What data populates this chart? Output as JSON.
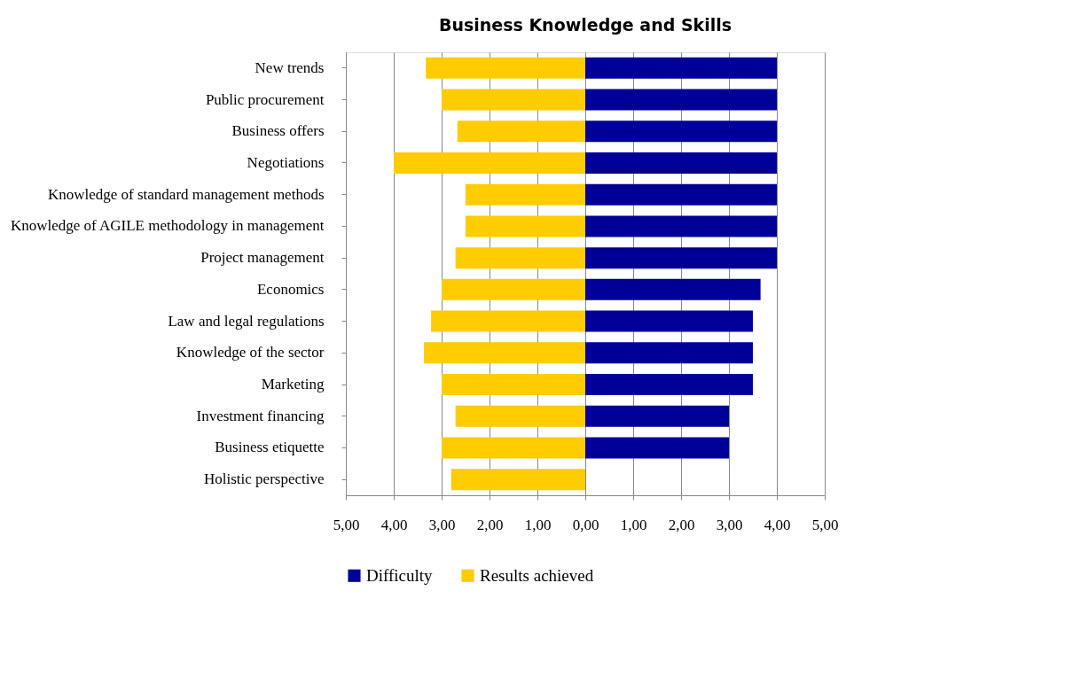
{
  "chart_data": {
    "type": "bar",
    "orientation": "horizontal",
    "title": "Business Knowledge and Skills",
    "categories": [
      "New trends",
      "Public procurement",
      "Business offers",
      "Negotiations",
      "Knowledge of standard management methods",
      "Knowledge of AGILE methodology in management",
      "Project management",
      "Economics",
      "Law and legal regulations",
      "Knowledge of the sector",
      "Marketing",
      "Investment financing",
      "Business etiquette",
      "Holistic perspective"
    ],
    "series": [
      {
        "name": "Difficulty",
        "color": "#000099",
        "values": [
          4.0,
          4.0,
          4.0,
          4.0,
          4.0,
          4.0,
          4.0,
          3.66,
          3.5,
          3.5,
          3.5,
          3.0,
          3.0,
          0
        ]
      },
      {
        "name": "Results achieved",
        "color": "#ffcc00",
        "values": [
          -3.33,
          -3.0,
          -2.67,
          -4.0,
          -2.5,
          -2.5,
          -2.71,
          -3.0,
          -3.22,
          -3.37,
          -3.0,
          -2.71,
          -3.0,
          -2.8
        ]
      }
    ],
    "xlim": [
      -5,
      5
    ],
    "xticks": [
      {
        "value": -5,
        "label": "5,00"
      },
      {
        "value": -4,
        "label": "4,00"
      },
      {
        "value": -3,
        "label": "3,00"
      },
      {
        "value": -2,
        "label": "2,00"
      },
      {
        "value": -1,
        "label": "1,00"
      },
      {
        "value": 0,
        "label": "0,00"
      },
      {
        "value": 1,
        "label": "1,00"
      },
      {
        "value": 2,
        "label": "2,00"
      },
      {
        "value": 3,
        "label": "3,00"
      },
      {
        "value": 4,
        "label": "4,00"
      },
      {
        "value": 5,
        "label": "5,00"
      }
    ],
    "stacked": true,
    "grid": "x",
    "legend": "bottom"
  }
}
